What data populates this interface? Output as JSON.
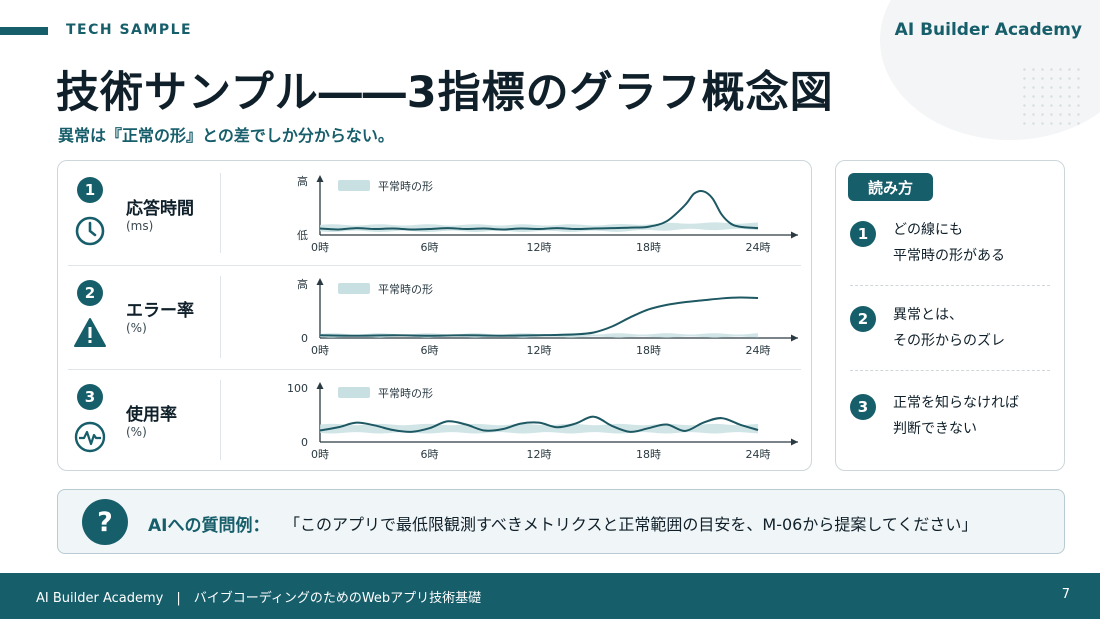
{
  "header": {
    "tag": "TECH SAMPLE",
    "brand": "AI Builder Academy",
    "title": "技術サンプル――3指標のグラフ概念図",
    "subtitle": "異常は『正常の形』との差でしか分からない。"
  },
  "metrics": [
    {
      "num": "1",
      "name": "応答時間",
      "unit": "(ms)",
      "icon": "clock-icon"
    },
    {
      "num": "2",
      "name": "エラー率",
      "unit": "(%)",
      "icon": "warning-icon"
    },
    {
      "num": "3",
      "name": "使用率",
      "unit": "(%)",
      "icon": "pulse-icon"
    }
  ],
  "chart_data": [
    {
      "type": "area",
      "metric": "応答時間",
      "legend": "平常時の形",
      "y_ticks": [
        "低",
        "高"
      ],
      "x_ticks": [
        "0時",
        "6時",
        "12時",
        "18時",
        "24時"
      ],
      "xlim": [
        0,
        24
      ],
      "ylim": [
        0,
        1
      ],
      "series": [
        {
          "x": [
            0,
            1,
            2,
            3,
            4,
            5,
            6,
            7,
            8,
            9,
            10,
            11,
            12,
            13,
            14,
            15,
            16,
            17,
            18,
            19,
            20,
            20.5,
            21,
            21.5,
            22,
            22.5,
            23,
            24
          ],
          "y": [
            0.14,
            0.12,
            0.15,
            0.13,
            0.14,
            0.12,
            0.13,
            0.15,
            0.13,
            0.14,
            0.12,
            0.14,
            0.13,
            0.15,
            0.13,
            0.14,
            0.15,
            0.16,
            0.18,
            0.3,
            0.65,
            0.9,
            0.95,
            0.8,
            0.45,
            0.25,
            0.18,
            0.15
          ]
        }
      ],
      "normal_band": {
        "x": [
          0,
          4,
          8,
          12,
          16,
          18,
          20,
          22,
          24
        ],
        "low": [
          0.08,
          0.08,
          0.08,
          0.08,
          0.08,
          0.1,
          0.12,
          0.12,
          0.12
        ],
        "high": [
          0.22,
          0.22,
          0.22,
          0.22,
          0.22,
          0.24,
          0.26,
          0.26,
          0.26
        ]
      }
    },
    {
      "type": "area",
      "metric": "エラー率",
      "legend": "平常時の形",
      "y_ticks": [
        "0",
        "高"
      ],
      "x_ticks": [
        "0時",
        "6時",
        "12時",
        "18時",
        "24時"
      ],
      "xlim": [
        0,
        24
      ],
      "ylim": [
        0,
        1
      ],
      "series": [
        {
          "x": [
            0,
            2,
            4,
            6,
            8,
            10,
            12,
            14,
            15,
            16,
            17,
            18,
            19,
            20,
            21,
            22,
            23,
            24
          ],
          "y": [
            0.06,
            0.05,
            0.06,
            0.05,
            0.06,
            0.05,
            0.06,
            0.08,
            0.12,
            0.25,
            0.45,
            0.62,
            0.72,
            0.78,
            0.82,
            0.86,
            0.88,
            0.87
          ]
        }
      ],
      "normal_band": {
        "x": [
          0,
          24
        ],
        "low": [
          0.02,
          0.02
        ],
        "high": [
          0.09,
          0.09
        ]
      }
    },
    {
      "type": "area",
      "metric": "使用率",
      "legend": "平常時の形",
      "y_ticks": [
        "0",
        "100"
      ],
      "x_ticks": [
        "0時",
        "6時",
        "12時",
        "18時",
        "24時"
      ],
      "xlim": [
        0,
        24
      ],
      "ylim": [
        0,
        100
      ],
      "series": [
        {
          "x": [
            0,
            1,
            2,
            3,
            4,
            5,
            6,
            7,
            8,
            9,
            10,
            11,
            12,
            13,
            14,
            15,
            16,
            17,
            18,
            19,
            20,
            21,
            22,
            23,
            24
          ],
          "y": [
            25,
            32,
            42,
            36,
            26,
            22,
            30,
            45,
            38,
            25,
            28,
            40,
            42,
            32,
            40,
            55,
            35,
            22,
            30,
            38,
            24,
            42,
            52,
            38,
            26
          ]
        }
      ],
      "normal_band": {
        "x": [
          0,
          24
        ],
        "low": [
          20,
          20
        ],
        "high": [
          38,
          38
        ]
      }
    }
  ],
  "reading_guide": {
    "title": "読み方",
    "items": [
      {
        "num": "1",
        "lines": [
          "どの線にも",
          "平常時の形がある"
        ]
      },
      {
        "num": "2",
        "lines": [
          "異常とは、",
          "その形からのズレ"
        ]
      },
      {
        "num": "3",
        "lines": [
          "正常を知らなければ",
          "判断できない"
        ]
      }
    ]
  },
  "question": {
    "icon": "question-icon",
    "label": "AIへの質問例：",
    "text": "「このアプリで最低限観測すべきメトリクスと正常範囲の目安を、M-06から提案してください」"
  },
  "footer": {
    "text": "AI Builder Academy　|　バイブコーディングのためのWebアプリ技術基礎",
    "page": "7"
  },
  "colors": {
    "accent": "#175e6b",
    "band": "#c9e0e3",
    "line": "#1d5863"
  }
}
